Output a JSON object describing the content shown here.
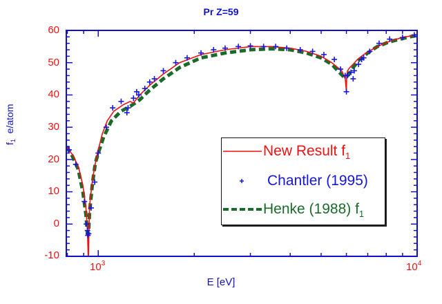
{
  "chart_data": {
    "type": "line",
    "title": "Pr Z=59",
    "xlabel": "E [eV]",
    "ylabel": "f1 e/atom",
    "xscale": "log",
    "xlim": [
      794,
      10000
    ],
    "ylim": [
      -10,
      60
    ],
    "x_ticks": [
      {
        "value": 1000,
        "label": "10",
        "exp": "3"
      },
      {
        "value": 10000,
        "label": "10",
        "exp": "4"
      }
    ],
    "y_ticks": [
      -10,
      0,
      10,
      20,
      30,
      40,
      50,
      60
    ],
    "grid": false,
    "legend_position": "center-right inside",
    "series": [
      {
        "name": "New Result f1",
        "style": "solid-line",
        "color": "#ee1111",
        "x": [
          795,
          830,
          865,
          895,
          915,
          925,
          930,
          932,
          934,
          940,
          960,
          980,
          1000,
          1030,
          1067,
          1120,
          1200,
          1260,
          1285,
          1300,
          1350,
          1450,
          1600,
          1800,
          2100,
          2500,
          3000,
          3500,
          4000,
          4500,
          5000,
          5400,
          5800,
          5950,
          5990,
          6000,
          6010,
          6050,
          6150,
          6300,
          6500,
          6800,
          7200,
          7700,
          8300,
          9000,
          10000
        ],
        "y": [
          24,
          21.5,
          18,
          12,
          5,
          -2,
          -10,
          -10,
          -4,
          6,
          14,
          19,
          23,
          28,
          32,
          35,
          37,
          38,
          37.5,
          38,
          40,
          43,
          46.5,
          50,
          52.5,
          54,
          55,
          55,
          54.5,
          53.5,
          52,
          50,
          47.5,
          45,
          42,
          41,
          45,
          47.5,
          48.5,
          49.5,
          51,
          52.5,
          54,
          55.5,
          56.8,
          57.8,
          58.7
        ]
      },
      {
        "name": "Chantler (1995)",
        "style": "plus-markers",
        "color": "#1515dd",
        "x": [
          795,
          810,
          850,
          905,
          918,
          925,
          928,
          933,
          950,
          975,
          1000,
          1060,
          1110,
          1180,
          1230,
          1240,
          1290,
          1320,
          1340,
          1400,
          1450,
          1500,
          1600,
          1750,
          1900,
          2100,
          2300,
          2500,
          2750,
          3000,
          3300,
          3600,
          3900,
          4300,
          4700,
          5100,
          5500,
          5750,
          5950,
          6000,
          6040,
          6200,
          6300,
          6350,
          6550,
          6700,
          6800,
          7100,
          7600,
          8200,
          9000,
          9800
        ],
        "y": [
          24,
          23,
          18.5,
          7,
          0,
          -2,
          -3.5,
          -3,
          5,
          13,
          22,
          30,
          36,
          38,
          34.5,
          36,
          39,
          41,
          40,
          42,
          44,
          45,
          47.5,
          50,
          51.5,
          53,
          54,
          54.5,
          55,
          55.2,
          55,
          55,
          54.5,
          54,
          53.5,
          52.5,
          51,
          48,
          46,
          41,
          46,
          47,
          45,
          47.5,
          49.5,
          51,
          51.5,
          53.5,
          56,
          57.3,
          57.8,
          58.6
        ]
      },
      {
        "name": "Henke (1988) f1",
        "style": "dashed-line",
        "color": "#1a6b2a",
        "x": [
          795,
          830,
          865,
          895,
          915,
          925,
          932,
          940,
          960,
          980,
          1000,
          1040,
          1100,
          1180,
          1260,
          1350,
          1450,
          1600,
          1800,
          2100,
          2500,
          3000,
          3500,
          4000,
          4500,
          5000,
          5400,
          5700,
          5900,
          6000,
          6100,
          6300,
          6600,
          7000,
          7500,
          8200,
          9000,
          10000
        ],
        "y": [
          24,
          21,
          17,
          10,
          3,
          -3,
          -3,
          4,
          13,
          19,
          22,
          27,
          32,
          35,
          36.5,
          38.5,
          41.5,
          45,
          48.5,
          51.5,
          53,
          54,
          54.3,
          54,
          53,
          51.5,
          49.5,
          47,
          45.5,
          45.5,
          46.5,
          48.5,
          51,
          53,
          55,
          56.5,
          57.5,
          58.5
        ]
      }
    ]
  },
  "labels": {
    "title": "Pr Z=59",
    "ylabel_main": "f",
    "ylabel_sub": "1",
    "ylabel_rest": "  e/atom",
    "xlabel": "E [eV]",
    "xtick_1000_base": "10",
    "xtick_1000_exp": "3",
    "xtick_10000_base": "10",
    "xtick_10000_exp": "4",
    "yticks": [
      "60",
      "50",
      "40",
      "30",
      "20",
      "10",
      "0",
      "-10"
    ]
  },
  "legend": {
    "new_result": "New Result f",
    "new_result_sub": "1",
    "chantler": "Chantler (1995)",
    "henke": "Henke (1988) f",
    "henke_sub": "1"
  },
  "colors": {
    "axis": "#1010cc",
    "tick_label": "#ee1111",
    "new_result": "#ee1111",
    "chantler": "#1515dd",
    "henke": "#1a6b2a"
  }
}
